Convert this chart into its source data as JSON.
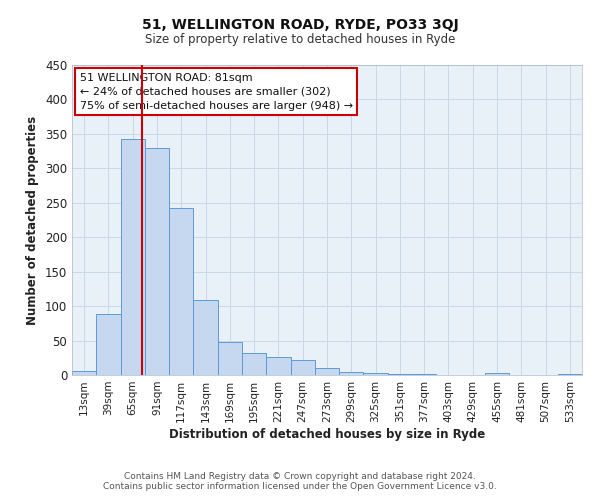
{
  "title": "51, WELLINGTON ROAD, RYDE, PO33 3QJ",
  "subtitle": "Size of property relative to detached houses in Ryde",
  "xlabel": "Distribution of detached houses by size in Ryde",
  "ylabel": "Number of detached properties",
  "categories": [
    "13sqm",
    "39sqm",
    "65sqm",
    "91sqm",
    "117sqm",
    "143sqm",
    "169sqm",
    "195sqm",
    "221sqm",
    "247sqm",
    "273sqm",
    "299sqm",
    "325sqm",
    "351sqm",
    "377sqm",
    "403sqm",
    "429sqm",
    "455sqm",
    "481sqm",
    "507sqm",
    "533sqm"
  ],
  "values": [
    6,
    88,
    343,
    330,
    242,
    109,
    48,
    32,
    26,
    22,
    10,
    5,
    3,
    2,
    1,
    0,
    0,
    3,
    0,
    0,
    2
  ],
  "bar_color": "#c5d8f0",
  "bar_edge_color": "#5b9bd5",
  "ylim": [
    0,
    450
  ],
  "yticks": [
    0,
    50,
    100,
    150,
    200,
    250,
    300,
    350,
    400,
    450
  ],
  "property_line_color": "#cc0000",
  "property_line_bin": 2,
  "annotation_title": "51 WELLINGTON ROAD: 81sqm",
  "annotation_line1": "← 24% of detached houses are smaller (302)",
  "annotation_line2": "75% of semi-detached houses are larger (948) →",
  "annotation_box_color": "#cc0000",
  "footer_line1": "Contains HM Land Registry data © Crown copyright and database right 2024.",
  "footer_line2": "Contains public sector information licensed under the Open Government Licence v3.0.",
  "background_color": "#ffffff",
  "plot_bg_color": "#e8f0f8",
  "grid_color": "#c8d8e8"
}
